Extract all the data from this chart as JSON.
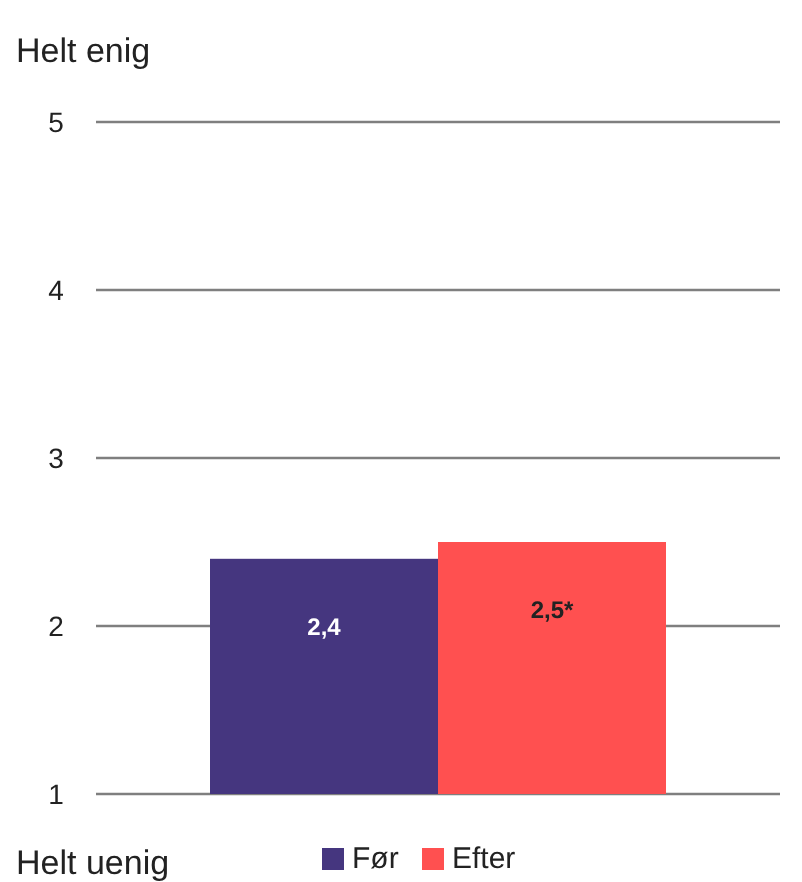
{
  "chart_data": {
    "type": "bar",
    "categories": [
      null
    ],
    "series": [
      {
        "name": "Før",
        "color": "#45367f",
        "values": [
          2.4
        ],
        "value_labels": [
          "2,4"
        ]
      },
      {
        "name": "Efter",
        "color": "#ff5050",
        "values": [
          2.5
        ],
        "value_labels": [
          "2,5*"
        ]
      }
    ],
    "ylim": [
      1,
      5
    ],
    "yticks": [
      1,
      2,
      3,
      4,
      5
    ],
    "grid": "y",
    "legend": "bottom",
    "annotations": [
      "Helt enig",
      "Helt uenig"
    ]
  }
}
